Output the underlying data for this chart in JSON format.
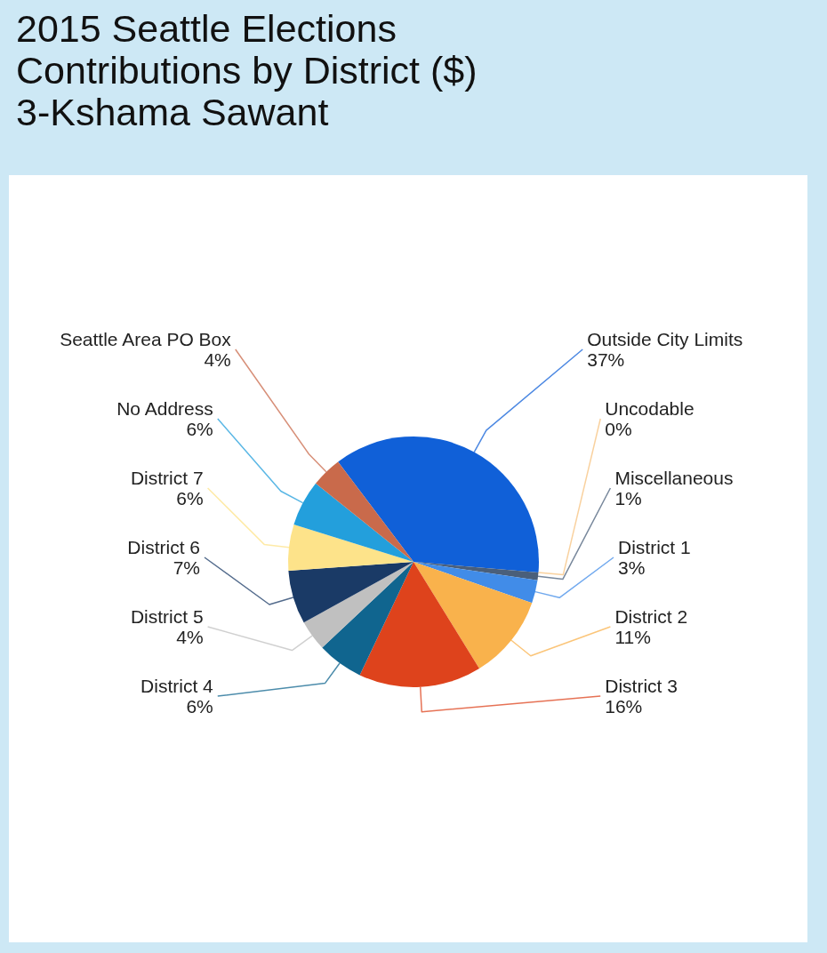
{
  "chart_data": {
    "type": "pie",
    "title": "2015 Seattle Elections\nContributions by District ($)",
    "subtitle": "3-Kshama Sawant",
    "categories": [
      "Outside City Limits",
      "Uncodable",
      "Miscellaneous",
      "District 1",
      "District 2",
      "District 3",
      "District 4",
      "District 5",
      "District 6",
      "District 7",
      "No Address",
      "Seattle Area PO Box"
    ],
    "values": [
      37,
      0,
      1,
      3,
      11,
      16,
      6,
      4,
      7,
      6,
      6,
      4
    ],
    "colors": [
      "#1060d8",
      "#f7c27e",
      "#4a5f7a",
      "#418ce8",
      "#f9b24c",
      "#de431c",
      "#10658f",
      "#c0c0c0",
      "#1a3a66",
      "#fde38a",
      "#239fdc",
      "#c96a4b"
    ],
    "value_labels": [
      "37%",
      "0%",
      "1%",
      "3%",
      "11%",
      "16%",
      "6%",
      "4%",
      "7%",
      "6%",
      "6%",
      "4%"
    ]
  }
}
